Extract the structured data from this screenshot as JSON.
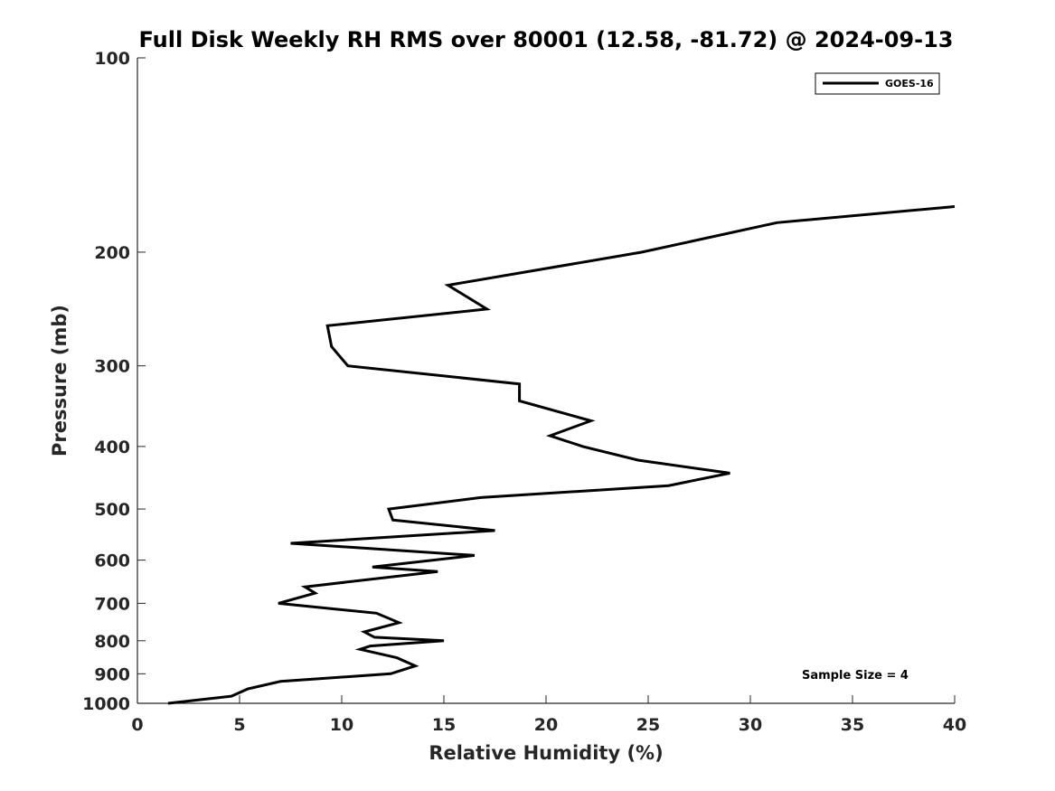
{
  "chart_data": {
    "type": "line",
    "title": "Full Disk Weekly RH RMS over 80001 (12.58, -81.72) @ 2024-09-13",
    "xlabel": "Relative Humidity (%)",
    "ylabel": "Pressure (mb)",
    "xlim": [
      0,
      40
    ],
    "ylim": [
      100,
      1000
    ],
    "y_scale": "log",
    "y_reversed": true,
    "x_ticks": [
      0,
      5,
      10,
      15,
      20,
      25,
      30,
      35,
      40
    ],
    "y_ticks": [
      100,
      200,
      300,
      400,
      500,
      600,
      700,
      800,
      900,
      1000
    ],
    "grid": false,
    "legend_position": "top-right",
    "annotation": "Sample Size = 4",
    "series": [
      {
        "name": "GOES-16",
        "color": "#000000",
        "points": [
          [
            1.5,
            1000
          ],
          [
            4.6,
            975
          ],
          [
            5.4,
            950
          ],
          [
            7.0,
            925
          ],
          [
            12.4,
            900
          ],
          [
            13.6,
            875
          ],
          [
            12.7,
            850
          ],
          [
            10.9,
            825
          ],
          [
            11.4,
            815
          ],
          [
            15.0,
            800
          ],
          [
            11.6,
            790
          ],
          [
            11.1,
            775
          ],
          [
            12.8,
            750
          ],
          [
            11.7,
            725
          ],
          [
            6.9,
            700
          ],
          [
            8.7,
            675
          ],
          [
            8.2,
            660
          ],
          [
            14.7,
            625
          ],
          [
            11.5,
            615
          ],
          [
            16.5,
            590
          ],
          [
            7.5,
            565
          ],
          [
            17.5,
            540
          ],
          [
            12.5,
            520
          ],
          [
            12.3,
            500
          ],
          [
            16.8,
            480
          ],
          [
            26.0,
            460
          ],
          [
            29.0,
            440
          ],
          [
            24.5,
            420
          ],
          [
            21.8,
            400
          ],
          [
            20.2,
            385
          ],
          [
            22.2,
            365
          ],
          [
            18.7,
            340
          ],
          [
            18.7,
            320
          ],
          [
            10.3,
            300
          ],
          [
            9.5,
            280
          ],
          [
            9.3,
            260
          ],
          [
            17.1,
            245
          ],
          [
            15.2,
            225
          ],
          [
            24.7,
            200
          ],
          [
            31.3,
            180
          ],
          [
            40.0,
            170
          ]
        ]
      }
    ]
  }
}
